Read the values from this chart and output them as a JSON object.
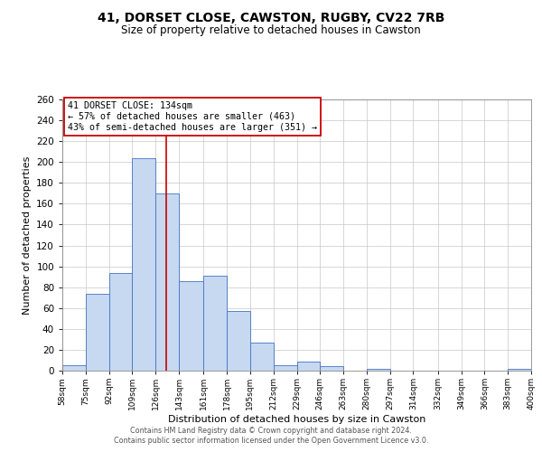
{
  "title": "41, DORSET CLOSE, CAWSTON, RUGBY, CV22 7RB",
  "subtitle": "Size of property relative to detached houses in Cawston",
  "xlabel": "Distribution of detached houses by size in Cawston",
  "ylabel": "Number of detached properties",
  "bar_left_edges": [
    58,
    75,
    92,
    109,
    126,
    143,
    161,
    178,
    195,
    212,
    229,
    246,
    263,
    280,
    297,
    314,
    332,
    349,
    366,
    383
  ],
  "bar_widths": [
    17,
    17,
    17,
    17,
    17,
    18,
    17,
    17,
    17,
    17,
    17,
    17,
    17,
    17,
    17,
    18,
    17,
    17,
    17,
    17
  ],
  "bar_heights": [
    5,
    74,
    94,
    204,
    170,
    86,
    91,
    57,
    27,
    5,
    9,
    4,
    0,
    2,
    0,
    0,
    0,
    0,
    0,
    2
  ],
  "bar_color": "#c6d9f1",
  "bar_edge_color": "#4472c4",
  "vline_x": 134,
  "vline_color": "#cc0000",
  "annotation_lines": [
    "41 DORSET CLOSE: 134sqm",
    "← 57% of detached houses are smaller (463)",
    "43% of semi-detached houses are larger (351) →"
  ],
  "annotation_box_color": "#ffffff",
  "annotation_box_edge": "#cc0000",
  "xlim_left": 58,
  "xlim_right": 400,
  "ylim_top": 260,
  "tick_labels": [
    "58sqm",
    "75sqm",
    "92sqm",
    "109sqm",
    "126sqm",
    "143sqm",
    "161sqm",
    "178sqm",
    "195sqm",
    "212sqm",
    "229sqm",
    "246sqm",
    "263sqm",
    "280sqm",
    "297sqm",
    "314sqm",
    "332sqm",
    "349sqm",
    "366sqm",
    "383sqm",
    "400sqm"
  ],
  "tick_positions": [
    58,
    75,
    92,
    109,
    126,
    143,
    161,
    178,
    195,
    212,
    229,
    246,
    263,
    280,
    297,
    314,
    332,
    349,
    366,
    383,
    400
  ],
  "yticks": [
    0,
    20,
    40,
    60,
    80,
    100,
    120,
    140,
    160,
    180,
    200,
    220,
    240,
    260
  ],
  "footnote1": "Contains HM Land Registry data © Crown copyright and database right 2024.",
  "footnote2": "Contains public sector information licensed under the Open Government Licence v3.0."
}
